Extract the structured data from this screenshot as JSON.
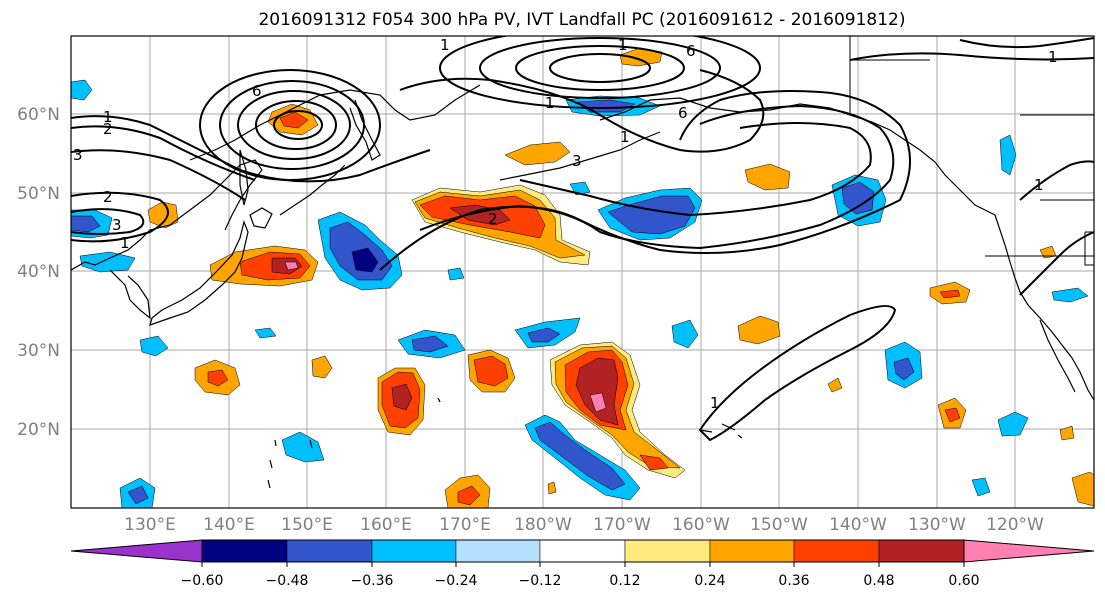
{
  "title": "2016091312 F054 300 hPa PV, IVT Landfall PC (2016091612 - 2016091812)",
  "lat_labels": [
    "60°N",
    "50°N",
    "40°N",
    "30°N",
    "20°N"
  ],
  "lon_labels": [
    "130°E",
    "140°E",
    "150°E",
    "160°E",
    "170°E",
    "180°W",
    "170°W",
    "160°W",
    "150°W",
    "140°W",
    "130°W",
    "120°W"
  ],
  "colorbar": {
    "labels": [
      "−0.60",
      "−0.48",
      "−0.36",
      "−0.24",
      "−0.12",
      "0.12",
      "0.24",
      "0.36",
      "0.48",
      "0.60"
    ],
    "colors": [
      "#9933cc",
      "#000080",
      "#3355cc",
      "#00bfff",
      "#b3e0ff",
      "#ffffff",
      "#ffea80",
      "#ffa500",
      "#ff4000",
      "#b22222",
      "#ff80b0"
    ]
  },
  "contour_labels": [
    "1",
    "2",
    "3",
    "1",
    "2",
    "3",
    "1",
    "6",
    "6",
    "2",
    "1",
    "1",
    "6",
    "3",
    "1",
    "1",
    "1",
    "1"
  ]
}
